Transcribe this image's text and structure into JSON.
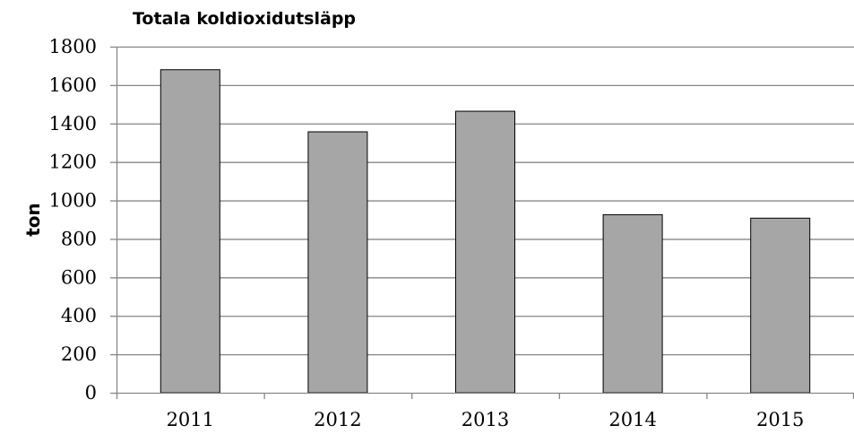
{
  "chart_data": {
    "type": "bar",
    "title": "Totala koldioxidutsläpp",
    "xlabel": "",
    "ylabel": "ton",
    "categories": [
      "2011",
      "2012",
      "2013",
      "2014",
      "2015"
    ],
    "values": [
      1680,
      1357,
      1464,
      926,
      908
    ],
    "ylim": [
      0,
      1800
    ],
    "y_ticks": [
      0,
      200,
      400,
      600,
      800,
      1000,
      1200,
      1400,
      1600,
      1800
    ],
    "grid": true,
    "legend": "none",
    "colors": {
      "bar_fill": "#a6a6a6",
      "bar_stroke": "#000000",
      "grid": "#868686",
      "axis": "#868686"
    }
  }
}
